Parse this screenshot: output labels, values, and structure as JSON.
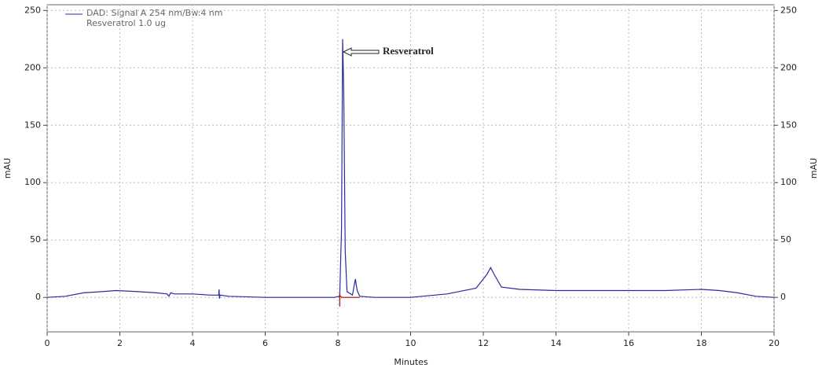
{
  "chart_data": {
    "type": "line",
    "x_label": "Minutes",
    "y_label": "mAU",
    "annotation": "Resveratrol",
    "legend": [
      "DAD: Signal A 254 nm/Bw:4 nm",
      "Resveratrol 1.0 ug"
    ],
    "series": [
      {
        "name": "DAD: Signal A 254 nm/Bw:4 nm",
        "color": "#2a2aa0",
        "x": [
          0,
          0.5,
          1,
          1.5,
          1.9,
          2.5,
          3,
          3.3,
          3.35,
          3.4,
          3.5,
          4,
          4.5,
          4.72,
          4.73,
          4.74,
          4.76,
          5,
          6,
          7,
          7.9,
          8.05,
          8.1,
          8.13,
          8.16,
          8.2,
          8.25,
          8.4,
          8.48,
          8.53,
          8.6,
          9,
          10,
          11,
          11.8,
          12.1,
          12.2,
          12.3,
          12.5,
          13,
          14,
          17,
          18,
          18.5,
          19,
          19.5,
          20
        ],
        "values": [
          0,
          1,
          4,
          5,
          6,
          5,
          4,
          3,
          1,
          4,
          3,
          3,
          2,
          2,
          7,
          -1,
          2,
          1,
          0,
          0,
          0,
          1,
          60,
          225,
          180,
          40,
          5,
          2,
          16,
          6,
          1,
          0,
          0,
          3,
          8,
          20,
          26,
          20,
          9,
          7,
          6,
          6,
          7,
          6,
          4,
          1,
          0
        ]
      },
      {
        "color": "#c00000",
        "x": [
          8.05,
          8.05,
          8.1,
          8.6
        ],
        "values": [
          -8,
          2,
          0,
          0
        ]
      }
    ],
    "xlim": [
      0,
      20
    ],
    "xticks": [
      0,
      2,
      4,
      6,
      8,
      10,
      12,
      14,
      16,
      18,
      20
    ],
    "ylim": [
      -30,
      255
    ],
    "yticks": [
      0,
      50,
      100,
      150,
      200,
      250
    ],
    "grid": true
  }
}
